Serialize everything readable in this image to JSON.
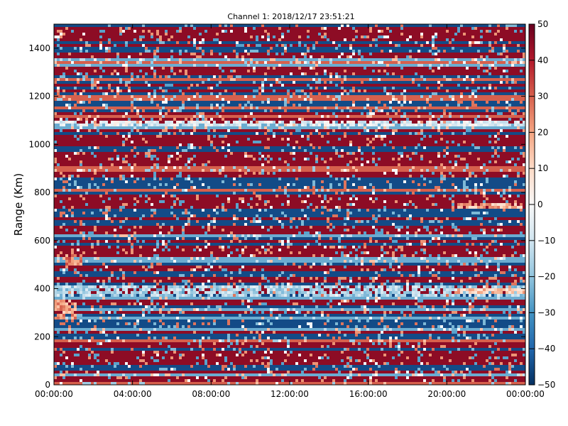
{
  "chart_data": {
    "type": "heatmap",
    "title": "Channel 1: 2018/12/17 23:51:21",
    "xlabel": "",
    "ylabel": "Range (Km)",
    "x_ticks": [
      "00:00:00",
      "04:00:00",
      "08:00:00",
      "12:00:00",
      "16:00:00",
      "20:00:00",
      "00:00:00"
    ],
    "x_range_hours": [
      0,
      24
    ],
    "y_ticks": [
      0,
      200,
      400,
      600,
      800,
      1000,
      1200,
      1400
    ],
    "ylim": [
      0,
      1500
    ],
    "colorbar": {
      "ticks": [
        50,
        40,
        30,
        20,
        10,
        0,
        -10,
        -20,
        -30,
        -40,
        -50
      ],
      "range": [
        -50,
        50
      ],
      "colormap": "RdBu_r",
      "low_color": "#053061",
      "mid_color": "#f7f7f7",
      "high_color": "#67001f"
    },
    "features": [
      {
        "range_km": [
          1080,
          1100
        ],
        "value": -5
      },
      {
        "range_km": [
          370,
          410
        ],
        "value": -15
      },
      {
        "range_km": [
          270,
          360
        ],
        "time_h": [
          0,
          1.2
        ],
        "value": 20
      },
      {
        "range_km": [
          500,
          540
        ],
        "time_h": [
          0.6,
          1.5
        ],
        "value": 25
      },
      {
        "range_km": [
          730,
          760
        ],
        "time_h": [
          20.5,
          24
        ],
        "value": 18
      },
      {
        "range_km": [
          380,
          400
        ],
        "time_h": [
          20.5,
          24
        ],
        "value": 15
      }
    ],
    "grid": false
  }
}
